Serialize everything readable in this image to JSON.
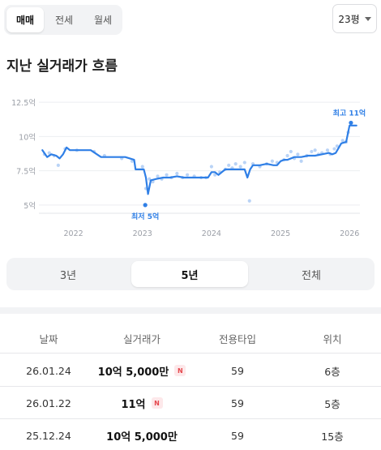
{
  "deal_tabs": [
    "매매",
    "전세",
    "월세"
  ],
  "area_select": {
    "value": "23평"
  },
  "title": "지난 실거래가 흐름",
  "chart_data": {
    "type": "line",
    "ytick_labels": [
      "12.5억",
      "10억",
      "7.5억",
      "5억"
    ],
    "yticks": [
      12.5,
      10,
      7.5,
      5
    ],
    "ylim": [
      4.4,
      12.8
    ],
    "xtick_labels": [
      "2022",
      "2023",
      "2024",
      "2025",
      "2026"
    ],
    "xticks": [
      2022,
      2023,
      2024,
      2025,
      2026
    ],
    "xlim": [
      2021.5,
      2026.15
    ],
    "series": [
      {
        "x": [
          2021.55,
          2021.62,
          2021.68,
          2021.75,
          2021.8,
          2021.85,
          2021.9,
          2021.95,
          2022.0,
          2022.1,
          2022.25,
          2022.4,
          2022.5,
          2022.52,
          2022.6,
          2022.75,
          2022.88,
          2022.9,
          2022.95,
          2023.0,
          2023.02,
          2023.05,
          2023.08,
          2023.12,
          2023.2,
          2023.3,
          2023.4,
          2023.5,
          2023.6,
          2023.7,
          2023.8,
          2023.9,
          2023.95,
          2024.0,
          2024.05,
          2024.1,
          2024.15,
          2024.2,
          2024.3,
          2024.4,
          2024.48,
          2024.52,
          2024.56,
          2024.6,
          2024.65,
          2024.7,
          2024.8,
          2024.9,
          2024.95,
          2025.0,
          2025.05,
          2025.1,
          2025.2,
          2025.3,
          2025.4,
          2025.5,
          2025.6,
          2025.7,
          2025.75,
          2025.8,
          2025.88,
          2025.95,
          2026.0,
          2026.05,
          2026.1
        ],
        "values": [
          9.0,
          8.5,
          8.7,
          8.6,
          8.4,
          8.7,
          9.2,
          9.0,
          9.0,
          9.0,
          9.0,
          8.5,
          8.5,
          8.5,
          8.5,
          8.5,
          8.3,
          7.6,
          7.6,
          7.6,
          7.6,
          7.0,
          5.8,
          6.8,
          6.9,
          7.0,
          7.0,
          7.1,
          7.0,
          7.0,
          7.0,
          7.0,
          7.0,
          7.4,
          7.4,
          7.2,
          7.4,
          7.6,
          7.6,
          7.6,
          7.6,
          7.0,
          7.6,
          7.9,
          7.9,
          7.9,
          8.0,
          7.9,
          7.9,
          8.2,
          8.3,
          8.3,
          8.5,
          8.5,
          8.6,
          8.6,
          8.7,
          8.8,
          8.7,
          8.8,
          9.5,
          9.6,
          10.8,
          10.8,
          10.8
        ]
      }
    ],
    "points": [
      [
        2021.58,
        8.7
      ],
      [
        2021.65,
        8.8
      ],
      [
        2021.72,
        8.6
      ],
      [
        2021.78,
        7.9
      ],
      [
        2021.88,
        9.1
      ],
      [
        2022.05,
        9.0
      ],
      [
        2022.3,
        8.9
      ],
      [
        2022.45,
        8.6
      ],
      [
        2022.7,
        8.4
      ],
      [
        2022.85,
        8.2
      ],
      [
        2023.0,
        7.8
      ],
      [
        2023.05,
        6.2
      ],
      [
        2023.1,
        6.9
      ],
      [
        2023.15,
        6.7
      ],
      [
        2023.22,
        7.1
      ],
      [
        2023.28,
        6.9
      ],
      [
        2023.35,
        7.2
      ],
      [
        2023.42,
        7.0
      ],
      [
        2023.5,
        7.3
      ],
      [
        2023.58,
        7.0
      ],
      [
        2023.65,
        7.2
      ],
      [
        2023.75,
        7.1
      ],
      [
        2023.85,
        7.0
      ],
      [
        2023.92,
        7.0
      ],
      [
        2024.0,
        7.8
      ],
      [
        2024.05,
        7.2
      ],
      [
        2024.12,
        7.4
      ],
      [
        2024.2,
        7.6
      ],
      [
        2024.25,
        7.9
      ],
      [
        2024.3,
        7.7
      ],
      [
        2024.35,
        8.0
      ],
      [
        2024.42,
        7.8
      ],
      [
        2024.48,
        8.1
      ],
      [
        2024.55,
        5.3
      ],
      [
        2024.6,
        8.0
      ],
      [
        2024.7,
        7.8
      ],
      [
        2024.8,
        8.0
      ],
      [
        2024.88,
        8.2
      ],
      [
        2024.95,
        8.1
      ],
      [
        2025.05,
        8.3
      ],
      [
        2025.1,
        8.6
      ],
      [
        2025.15,
        8.9
      ],
      [
        2025.2,
        8.4
      ],
      [
        2025.25,
        8.7
      ],
      [
        2025.3,
        8.2
      ],
      [
        2025.38,
        8.6
      ],
      [
        2025.45,
        8.9
      ],
      [
        2025.5,
        9.0
      ],
      [
        2025.55,
        8.7
      ],
      [
        2025.6,
        8.8
      ],
      [
        2025.68,
        9.0
      ],
      [
        2025.72,
        8.7
      ],
      [
        2025.78,
        9.1
      ],
      [
        2025.82,
        9.3
      ],
      [
        2025.9,
        9.7
      ],
      [
        2025.95,
        9.6
      ],
      [
        2025.98,
        10.3
      ]
    ],
    "max_marker": {
      "label": "최고 11억",
      "x": 2026.02,
      "y": 11.0
    },
    "min_marker": {
      "label": "최저 5억",
      "x": 2023.04,
      "y": 5.0
    },
    "line_color": "#2f7fe6",
    "point_color": "#b9d3f6",
    "grid": true
  },
  "period_tabs": [
    "3년",
    "5년",
    "전체"
  ],
  "period_selected": "5년",
  "table": {
    "headers": [
      "날짜",
      "실거래가",
      "전용타입",
      "위치"
    ],
    "rows": [
      {
        "date": "26.01.24",
        "price": "10억 5,000만",
        "badge": "N",
        "type": "59",
        "floor": "6층"
      },
      {
        "date": "26.01.22",
        "price": "11억",
        "badge": "N",
        "type": "59",
        "floor": "5층"
      },
      {
        "date": "25.12.24",
        "price": "10억 5,000만",
        "badge": "",
        "type": "59",
        "floor": "15층"
      }
    ]
  }
}
